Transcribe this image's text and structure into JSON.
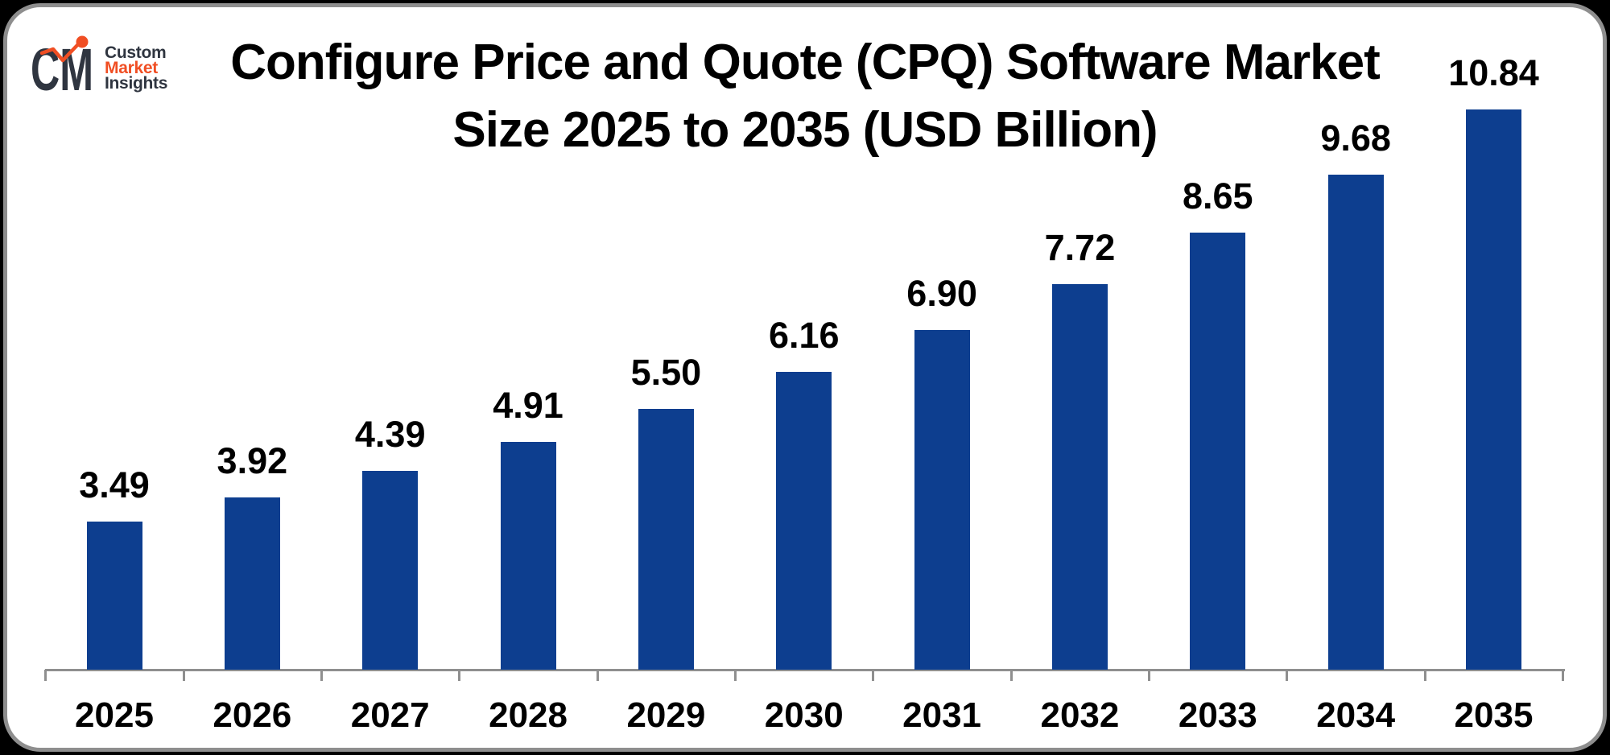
{
  "brand": {
    "mark_text": "CM",
    "words": [
      {
        "text": "Custom",
        "color": "#2f3540"
      },
      {
        "text": "Market",
        "color": "#f04e23"
      },
      {
        "text": "Insights",
        "color": "#2f3540"
      }
    ],
    "mark_dark_color": "#2f3540",
    "mark_orange_color": "#f04e23"
  },
  "chart_data": {
    "type": "bar",
    "title": "Configure Price and Quote (CPQ) Software Market Size 2025 to 2035 (USD Billion)",
    "title_lines": [
      "Configure Price and Quote (CPQ) Software Market",
      "Size 2025 to 2035 (USD Billion)"
    ],
    "unit": "USD Billion",
    "categories": [
      "2025",
      "2026",
      "2027",
      "2028",
      "2029",
      "2030",
      "2031",
      "2032",
      "2033",
      "2034",
      "2035"
    ],
    "values": [
      3.49,
      3.92,
      4.39,
      4.91,
      5.5,
      6.16,
      6.9,
      7.72,
      8.65,
      9.68,
      10.84
    ],
    "labels": [
      "3.49",
      "3.92",
      "4.39",
      "4.91",
      "5.50",
      "6.16",
      "6.90",
      "7.72",
      "8.65",
      "9.68",
      "10.84"
    ],
    "xlabel": "",
    "ylabel": "",
    "legend": false,
    "grid": false,
    "ylim": [
      0,
      12
    ],
    "bar_color": "#0d3e8f",
    "axis_color": "#8f8f8f",
    "label_color": "#000000",
    "title_color": "#000000",
    "background": "#ffffff",
    "outer_background": "#000000"
  }
}
